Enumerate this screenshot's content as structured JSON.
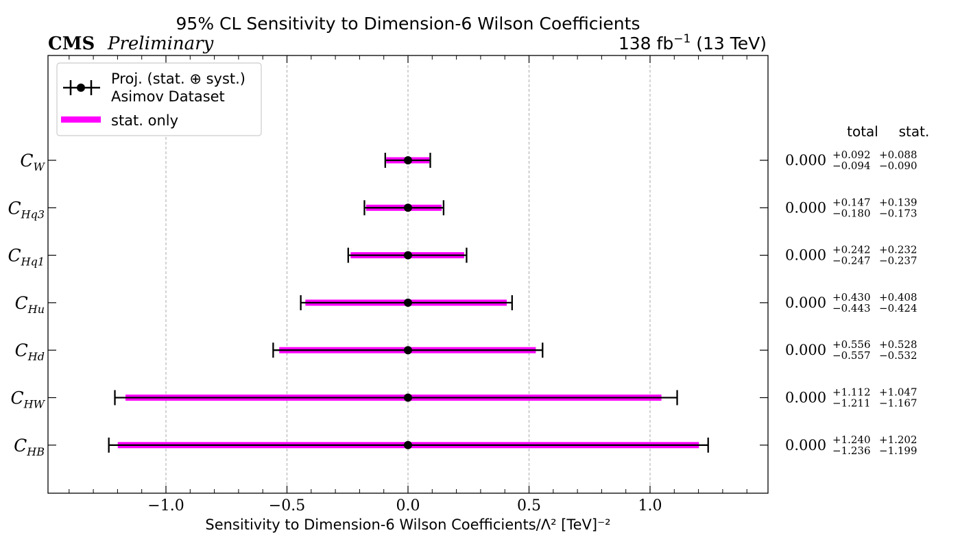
{
  "header": {
    "title": "95% CL Sensitivity to Dimension-6 Wilson Coefficients",
    "experiment": "CMS",
    "status": "Preliminary",
    "lumi": "138 fb",
    "lumi_exp": "−1",
    "energy": "(13 TeV)"
  },
  "legend": {
    "entry1_line1": "Proj. (stat. ⊕ syst.)",
    "entry1_line2": "Asimov Dataset",
    "entry2": "stat. only"
  },
  "table": {
    "header_total": "total",
    "header_stat": "stat."
  },
  "colors": {
    "stat_band": "#ff00ff",
    "total_bar": "#000000",
    "grid": "#aaaaaa"
  },
  "chart_data": {
    "type": "errorbar",
    "title": "95% CL Sensitivity to Dimension-6 Wilson Coefficients",
    "xlabel": "Sensitivity to Dimension-6 Wilson Coefficients/Λ² [TeV]⁻²",
    "xlim": [
      -1.5,
      1.5
    ],
    "xticks": [
      -1.0,
      -0.5,
      0.0,
      0.5,
      1.0
    ],
    "xtick_labels": [
      "−1.0",
      "−0.5",
      "0.0",
      "0.5",
      "1.0"
    ],
    "grid": "vertical dashed at major ticks",
    "legend_position": "top-left",
    "series": [
      {
        "label": "C",
        "sub": "W",
        "central": 0.0,
        "central_label": "0.000",
        "total_up": 0.092,
        "total_down": -0.094,
        "stat_up": 0.088,
        "stat_down": -0.09,
        "total_up_label": "+0.092",
        "total_down_label": "−0.094",
        "stat_up_label": "+0.088",
        "stat_down_label": "−0.090"
      },
      {
        "label": "C",
        "sub": "Hq3",
        "central": 0.0,
        "central_label": "0.000",
        "total_up": 0.147,
        "total_down": -0.18,
        "stat_up": 0.139,
        "stat_down": -0.173,
        "total_up_label": "+0.147",
        "total_down_label": "−0.180",
        "stat_up_label": "+0.139",
        "stat_down_label": "−0.173"
      },
      {
        "label": "C",
        "sub": "Hq1",
        "central": 0.0,
        "central_label": "0.000",
        "total_up": 0.242,
        "total_down": -0.247,
        "stat_up": 0.232,
        "stat_down": -0.237,
        "total_up_label": "+0.242",
        "total_down_label": "−0.247",
        "stat_up_label": "+0.232",
        "stat_down_label": "−0.237"
      },
      {
        "label": "C",
        "sub": "Hu",
        "central": 0.0,
        "central_label": "0.000",
        "total_up": 0.43,
        "total_down": -0.443,
        "stat_up": 0.408,
        "stat_down": -0.424,
        "total_up_label": "+0.430",
        "total_down_label": "−0.443",
        "stat_up_label": "+0.408",
        "stat_down_label": "−0.424"
      },
      {
        "label": "C",
        "sub": "Hd",
        "central": 0.0,
        "central_label": "0.000",
        "total_up": 0.556,
        "total_down": -0.557,
        "stat_up": 0.528,
        "stat_down": -0.532,
        "total_up_label": "+0.556",
        "total_down_label": "−0.557",
        "stat_up_label": "+0.528",
        "stat_down_label": "−0.532"
      },
      {
        "label": "C",
        "sub": "HW",
        "central": 0.0,
        "central_label": "0.000",
        "total_up": 1.112,
        "total_down": -1.211,
        "stat_up": 1.047,
        "stat_down": -1.167,
        "total_up_label": "+1.112",
        "total_down_label": "−1.211",
        "stat_up_label": "+1.047",
        "stat_down_label": "−1.167"
      },
      {
        "label": "C",
        "sub": "HB",
        "central": 0.0,
        "central_label": "0.000",
        "total_up": 1.24,
        "total_down": -1.236,
        "stat_up": 1.202,
        "stat_down": -1.199,
        "total_up_label": "+1.240",
        "total_down_label": "−1.236",
        "stat_up_label": "+1.202",
        "stat_down_label": "−1.199"
      }
    ]
  }
}
